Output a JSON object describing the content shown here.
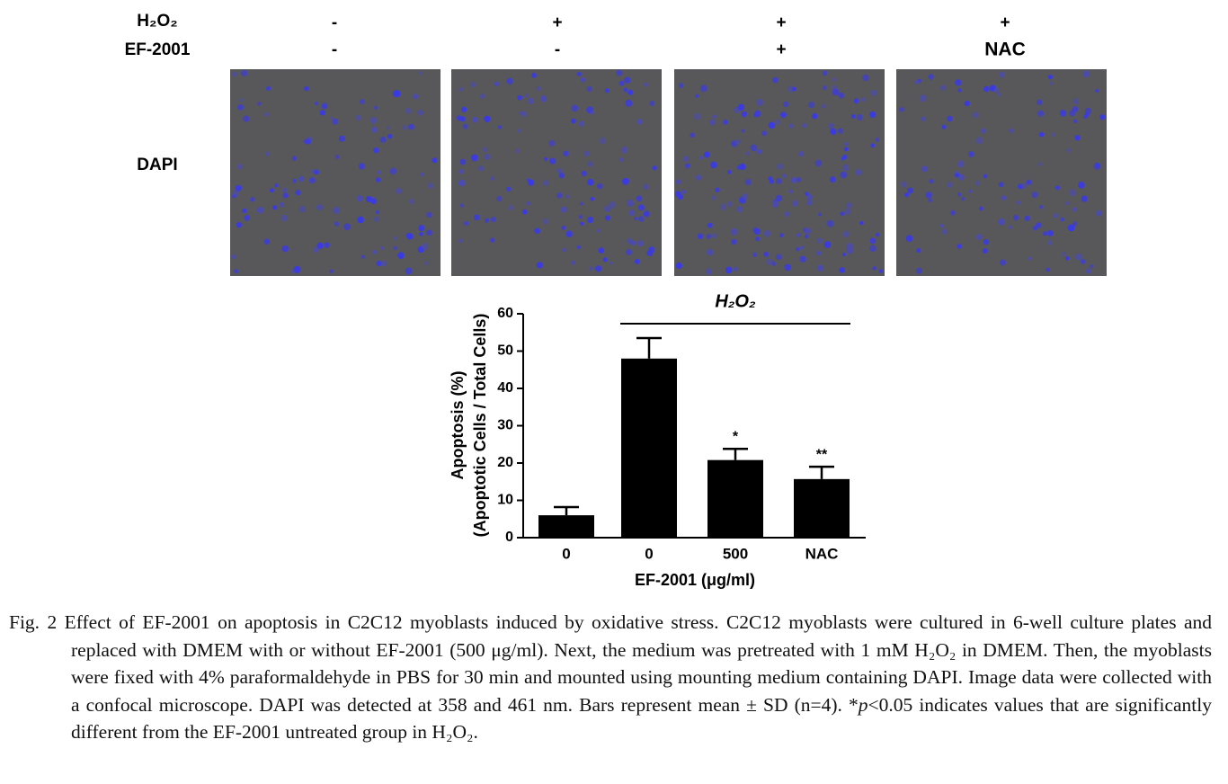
{
  "panel": {
    "row_labels": [
      "H₂O₂",
      "EF-2001"
    ],
    "columns": [
      [
        "-",
        "-"
      ],
      [
        "+",
        "-"
      ],
      [
        "+",
        "+"
      ],
      [
        "+",
        "NAC"
      ]
    ],
    "image_label": "DAPI"
  },
  "chart_data": {
    "type": "bar",
    "y_label": [
      "Apoptosis (%)",
      "(Apoptotic Cells / Total Cells)"
    ],
    "x_label": "EF-2001 (μg/ml)",
    "bracket_label": "H₂O₂",
    "categories": [
      "0",
      "0",
      "500",
      "NAC"
    ],
    "values": [
      6,
      48,
      20.8,
      15.7
    ],
    "errors": [
      2.2,
      5.5,
      3,
      3.3
    ],
    "annotations": [
      null,
      null,
      "*",
      "**"
    ],
    "color": "#000000",
    "ylim": [
      0,
      60
    ],
    "yticks": [
      0,
      10,
      20,
      30,
      40,
      50,
      60
    ]
  },
  "caption": {
    "label": "Fig. 2",
    "text": "Effect of EF-2001 on apoptosis in C2C12 myoblasts induced by oxidative stress. C2C12 myoblasts were cultured in 6-well culture plates and replaced with DMEM with or without EF-2001 (500 μg/ml). Next, the medium was pretreated with 1 mM H₂O₂ in DMEM. Then, the myoblasts were fixed with 4% paraformaldehyde in PBS for 30 min and mounted using mounting medium containing DAPI. Image data were collected with a confocal microscope. DAPI was detected at 358 and 461 nm. Bars represent mean ± SD (n=4). *",
    "italic": "p",
    "text_end": "<0.05 indicates values that are significantly different from the EF-2001 untreated group in H₂O₂."
  }
}
